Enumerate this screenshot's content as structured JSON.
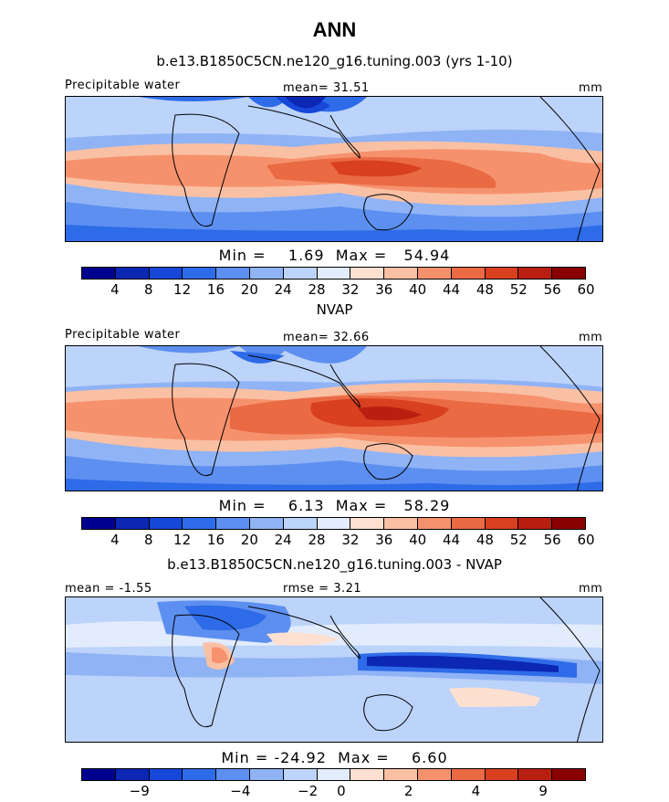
{
  "title": "ANN",
  "panels": [
    {
      "title": "b.e13.B1850C5CN.ne120_g16.tuning.003 (yrs 1-10)",
      "left_label": "Precipitable water",
      "center_label": "mean=  31.51",
      "right_label": "mm",
      "minmax": "Min =    1.69  Max =   54.94",
      "colorbar_labels": [
        "4",
        "8",
        "12",
        "16",
        "20",
        "24",
        "28",
        "32",
        "36",
        "40",
        "44",
        "48",
        "52",
        "56",
        "60"
      ]
    },
    {
      "title": "NVAP",
      "left_label": "Precipitable water",
      "center_label": "mean=  32.66",
      "right_label": "mm",
      "minmax": "Min =    6.13  Max =   58.29",
      "colorbar_labels": [
        "4",
        "8",
        "12",
        "16",
        "20",
        "24",
        "28",
        "32",
        "36",
        "40",
        "44",
        "48",
        "52",
        "56",
        "60"
      ]
    },
    {
      "title": "b.e13.B1850C5CN.ne120_g16.tuning.003 - NVAP",
      "left_label": "mean = -1.55",
      "center_label": "rmse =   3.21",
      "right_label": "mm",
      "minmax": "Min = -24.92  Max =    6.60",
      "colorbar_labels": [
        "-9",
        "-4",
        "-2",
        "0",
        "2",
        "4",
        "9"
      ]
    }
  ],
  "colors": {
    "abs_scale": [
      "#00008f",
      "#0b27b3",
      "#1747d9",
      "#2e6be8",
      "#5d8ff0",
      "#8fb3f5",
      "#bcd3fa",
      "#e2ecfd",
      "#fde0d0",
      "#fac0a4",
      "#f5926d",
      "#ea6a44",
      "#d8401f",
      "#b81f10",
      "#8a0000"
    ],
    "diff_scale": [
      "#00008f",
      "#0b27b3",
      "#1747d9",
      "#2e6be8",
      "#5d8ff0",
      "#8fb3f5",
      "#bcd3fa",
      "#e2ecfd",
      "#fde0d0",
      "#fac0a4",
      "#f5926d",
      "#ea6a44",
      "#d8401f",
      "#b81f10",
      "#8a0000"
    ]
  },
  "chart_data": [
    {
      "type": "heatmap",
      "title": "b.e13.B1850C5CN.ne120_g16.tuning.003 (yrs 1-10)",
      "variable": "Precipitable water",
      "units": "mm",
      "mean": 31.51,
      "min": 1.69,
      "max": 54.94,
      "contour_levels": [
        4,
        8,
        12,
        16,
        20,
        24,
        28,
        32,
        36,
        40,
        44,
        48,
        52,
        56,
        60
      ]
    },
    {
      "type": "heatmap",
      "title": "NVAP",
      "variable": "Precipitable water",
      "units": "mm",
      "mean": 32.66,
      "min": 6.13,
      "max": 58.29,
      "contour_levels": [
        4,
        8,
        12,
        16,
        20,
        24,
        28,
        32,
        36,
        40,
        44,
        48,
        52,
        56,
        60
      ]
    },
    {
      "type": "heatmap",
      "title": "b.e13.B1850C5CN.ne120_g16.tuning.003 - NVAP",
      "units": "mm",
      "mean": -1.55,
      "rmse": 3.21,
      "min": -24.92,
      "max": 6.6,
      "contour_levels": [
        -9,
        -4,
        -2,
        0,
        2,
        4,
        9
      ]
    }
  ]
}
